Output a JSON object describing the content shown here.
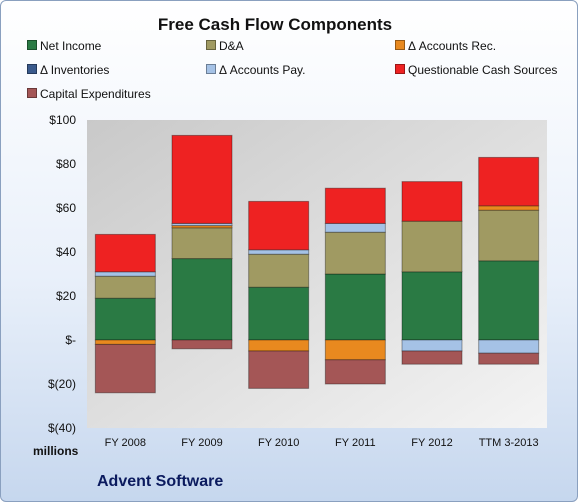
{
  "chart_data": {
    "type": "bar",
    "stacked": true,
    "title": "Free Cash Flow Components",
    "unit_label": "millions",
    "company": "Advent Software",
    "ylim": [
      -40,
      100
    ],
    "yticks": [
      "$(40)",
      "$(20)",
      "$-",
      "$20",
      "$40",
      "$60",
      "$80",
      "$100"
    ],
    "ytick_values": [
      -40,
      -20,
      0,
      20,
      40,
      60,
      80,
      100
    ],
    "categories": [
      "FY 2008",
      "FY 2009",
      "FY 2010",
      "FY 2011",
      "FY 2012",
      "TTM 3-2013"
    ],
    "legend_placement": "top",
    "grid": false,
    "series": [
      {
        "name": "Net Income",
        "color": "#2a7a44",
        "values": [
          19,
          37,
          24,
          30,
          31,
          36
        ]
      },
      {
        "name": "D&A",
        "color": "#a09a62",
        "values": [
          10,
          14,
          15,
          19,
          23,
          23
        ]
      },
      {
        "name": "Δ Accounts Rec.",
        "color": "#e8891f",
        "values": [
          -2,
          1,
          -5,
          -9,
          0,
          2
        ]
      },
      {
        "name": "Δ Inventories",
        "color": "#3a5a8c",
        "values": [
          0,
          0,
          0,
          0,
          0,
          0
        ]
      },
      {
        "name": "Δ Accounts Pay.",
        "color": "#a5c2e6",
        "values": [
          2,
          1,
          2,
          4,
          -5,
          -6
        ]
      },
      {
        "name": "Questionable Cash Sources",
        "color": "#ee2222",
        "values": [
          17,
          40,
          22,
          16,
          18,
          22
        ]
      },
      {
        "name": "Capital Expenditures",
        "color": "#a45656",
        "values": [
          -22,
          -4,
          -17,
          -11,
          -6,
          -5
        ]
      }
    ]
  }
}
